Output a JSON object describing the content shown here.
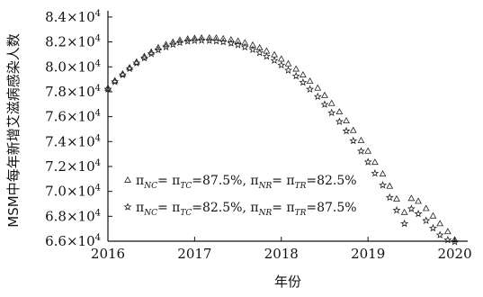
{
  "chart_data": {
    "type": "scatter",
    "title": "",
    "xlabel": "年份",
    "ylabel": "MSM中每年新增艾滋病感染人数",
    "xlim": [
      2016,
      2020.15
    ],
    "ylim": [
      66000,
      84500
    ],
    "x_ticks": [
      2016,
      2017,
      2018,
      2019,
      2020
    ],
    "x_tick_labels": [
      "2016",
      "2017",
      "2018",
      "2019",
      "2020"
    ],
    "y_ticks": [
      66000,
      68000,
      70000,
      72000,
      74000,
      76000,
      78000,
      80000,
      82000,
      84000
    ],
    "y_tick_labels": [
      {
        "mantissa": "6.6",
        "base": "×10",
        "exp": "4"
      },
      {
        "mantissa": "6.8",
        "base": "×10",
        "exp": "4"
      },
      {
        "mantissa": "7.0",
        "base": "×10",
        "exp": "4"
      },
      {
        "mantissa": "7.2",
        "base": "×10",
        "exp": "4"
      },
      {
        "mantissa": "7.4",
        "base": "×10",
        "exp": "4"
      },
      {
        "mantissa": "7.6",
        "base": "×10",
        "exp": "4"
      },
      {
        "mantissa": "7.8",
        "base": "×10",
        "exp": "4"
      },
      {
        "mantissa": "8.0",
        "base": "×10",
        "exp": "4"
      },
      {
        "mantissa": "8.2",
        "base": "×10",
        "exp": "4"
      },
      {
        "mantissa": "8.4",
        "base": "×10",
        "exp": "4"
      }
    ],
    "legend_position": "center-left",
    "grid": false,
    "series": [
      {
        "marker": "triangle",
        "legend_parts": [
          "π",
          "NC",
          "= π",
          "TC",
          "=87.5%,  π",
          "NR",
          "= π",
          "TR",
          "=82.5%"
        ],
        "points": [
          [
            2016.0,
            78300
          ],
          [
            2016.08,
            78900
          ],
          [
            2016.17,
            79450
          ],
          [
            2016.25,
            79950
          ],
          [
            2016.33,
            80400
          ],
          [
            2016.42,
            80850
          ],
          [
            2016.5,
            81200
          ],
          [
            2016.58,
            81550
          ],
          [
            2016.67,
            81800
          ],
          [
            2016.75,
            82000
          ],
          [
            2016.83,
            82150
          ],
          [
            2016.92,
            82250
          ],
          [
            2017.0,
            82300
          ],
          [
            2017.08,
            82330
          ],
          [
            2017.17,
            82340
          ],
          [
            2017.25,
            82320
          ],
          [
            2017.33,
            82270
          ],
          [
            2017.42,
            82190
          ],
          [
            2017.5,
            82080
          ],
          [
            2017.58,
            81940
          ],
          [
            2017.67,
            81760
          ],
          [
            2017.75,
            81540
          ],
          [
            2017.83,
            81280
          ],
          [
            2017.92,
            80980
          ],
          [
            2018.0,
            80640
          ],
          [
            2018.08,
            80260
          ],
          [
            2018.17,
            79840
          ],
          [
            2018.25,
            79370
          ],
          [
            2018.33,
            78860
          ],
          [
            2018.42,
            78310
          ],
          [
            2018.5,
            77720
          ],
          [
            2018.58,
            77080
          ],
          [
            2018.67,
            76400
          ],
          [
            2018.75,
            75680
          ],
          [
            2018.83,
            74910
          ],
          [
            2018.92,
            74100
          ],
          [
            2019.0,
            73250
          ],
          [
            2019.08,
            72350
          ],
          [
            2019.17,
            71410
          ],
          [
            2019.25,
            70430
          ],
          [
            2019.33,
            69400
          ],
          [
            2019.42,
            68330
          ],
          [
            2019.5,
            69450
          ],
          [
            2019.58,
            69220
          ],
          [
            2019.67,
            68640
          ],
          [
            2019.75,
            68040
          ],
          [
            2019.83,
            67420
          ],
          [
            2019.92,
            66780
          ],
          [
            2020.0,
            66120
          ]
        ]
      },
      {
        "marker": "star",
        "legend_parts": [
          "π",
          "NC",
          "= π",
          "TC",
          "=82.5%,  π",
          "NR",
          "= π",
          "TR",
          "=87.5%"
        ],
        "points": [
          [
            2016.0,
            78200
          ],
          [
            2016.08,
            78800
          ],
          [
            2016.17,
            79350
          ],
          [
            2016.25,
            79850
          ],
          [
            2016.33,
            80300
          ],
          [
            2016.42,
            80700
          ],
          [
            2016.5,
            81050
          ],
          [
            2016.58,
            81350
          ],
          [
            2016.67,
            81600
          ],
          [
            2016.75,
            81800
          ],
          [
            2016.83,
            81950
          ],
          [
            2016.92,
            82050
          ],
          [
            2017.0,
            82100
          ],
          [
            2017.08,
            82120
          ],
          [
            2017.17,
            82110
          ],
          [
            2017.25,
            82070
          ],
          [
            2017.33,
            82000
          ],
          [
            2017.42,
            81900
          ],
          [
            2017.5,
            81760
          ],
          [
            2017.58,
            81590
          ],
          [
            2017.67,
            81380
          ],
          [
            2017.75,
            81130
          ],
          [
            2017.83,
            80840
          ],
          [
            2017.92,
            80510
          ],
          [
            2018.0,
            80140
          ],
          [
            2018.08,
            79720
          ],
          [
            2018.17,
            79260
          ],
          [
            2018.25,
            78750
          ],
          [
            2018.33,
            78200
          ],
          [
            2018.42,
            77610
          ],
          [
            2018.5,
            76980
          ],
          [
            2018.58,
            76310
          ],
          [
            2018.67,
            75600
          ],
          [
            2018.75,
            74850
          ],
          [
            2018.83,
            74060
          ],
          [
            2018.92,
            73230
          ],
          [
            2019.0,
            72360
          ],
          [
            2019.08,
            71450
          ],
          [
            2019.17,
            70500
          ],
          [
            2019.25,
            69510
          ],
          [
            2019.33,
            68480
          ],
          [
            2019.42,
            67410
          ],
          [
            2019.5,
            68600
          ],
          [
            2019.58,
            68200
          ],
          [
            2019.67,
            67650
          ],
          [
            2019.75,
            67050
          ],
          [
            2019.83,
            66500
          ],
          [
            2019.92,
            66100
          ],
          [
            2020.0,
            65950
          ]
        ]
      }
    ]
  }
}
